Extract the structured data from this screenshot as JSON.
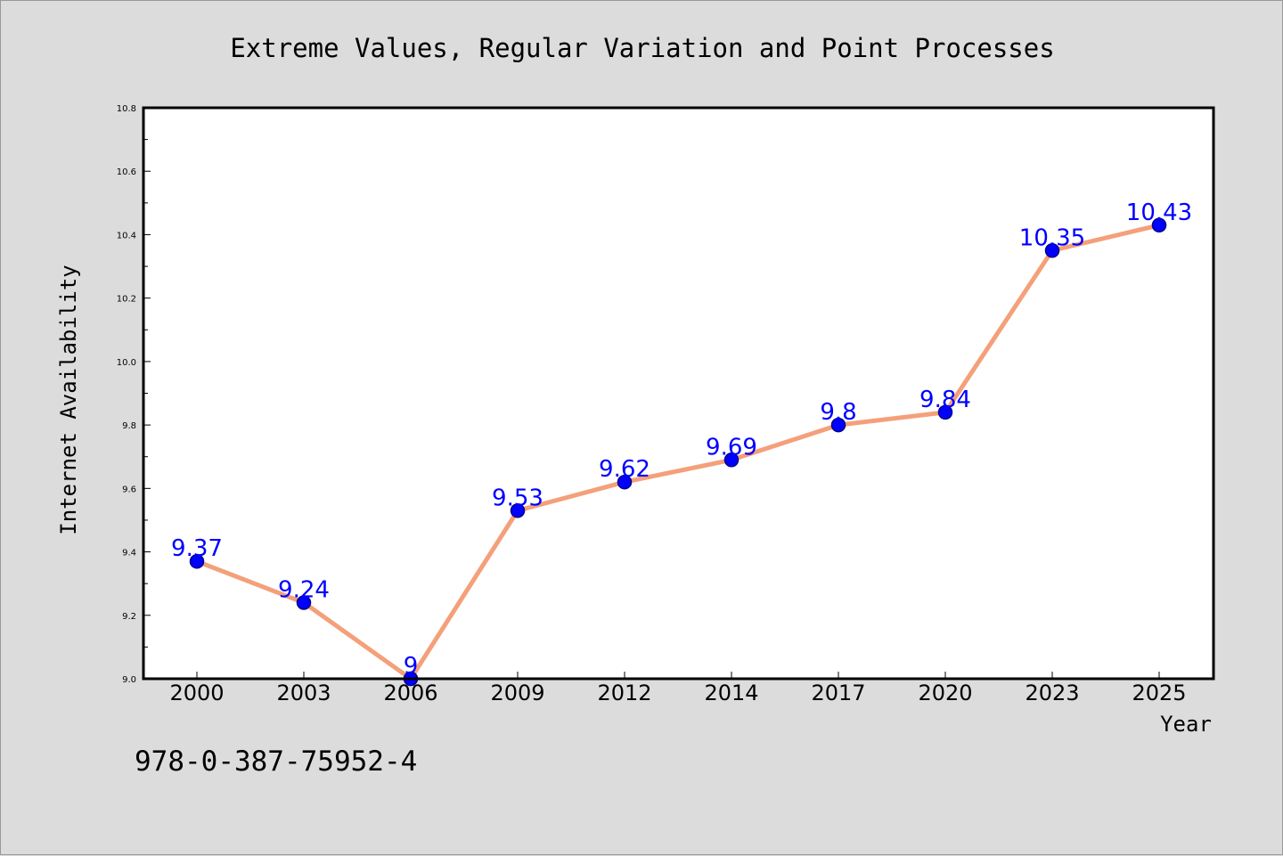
{
  "footer": {
    "isbn": "978-0-387-75952-4"
  },
  "chart_data": {
    "type": "line",
    "title": "Extreme Values, Regular Variation and Point Processes",
    "xlabel": "Year",
    "ylabel": "Internet Availability",
    "categories": [
      "2000",
      "2003",
      "2006",
      "2009",
      "2012",
      "2014",
      "2017",
      "2020",
      "2023",
      "2025"
    ],
    "series": [
      {
        "values": [
          9.37,
          9.24,
          9.0,
          9.53,
          9.62,
          9.69,
          9.8,
          9.84,
          10.35,
          10.43
        ],
        "data_labels": [
          "9.37",
          "9.24",
          "9",
          "9.53",
          "9.62",
          "9.69",
          "9.8",
          "9.84",
          "10.35",
          "10.43"
        ]
      }
    ],
    "ylim": [
      9.0,
      10.8
    ],
    "yticks": [
      "9.0",
      "9.2",
      "9.4",
      "9.6",
      "9.8",
      "10.0",
      "10.2",
      "10.4",
      "10.6",
      "10.8"
    ],
    "grid": false,
    "colors": {
      "line": "#f4a07a",
      "marker_fill": "#0000ff",
      "marker_edge": "#00008b",
      "data_label": "#0000ff",
      "background": "#dcdcdc",
      "plot_background": "#ffffff"
    }
  }
}
